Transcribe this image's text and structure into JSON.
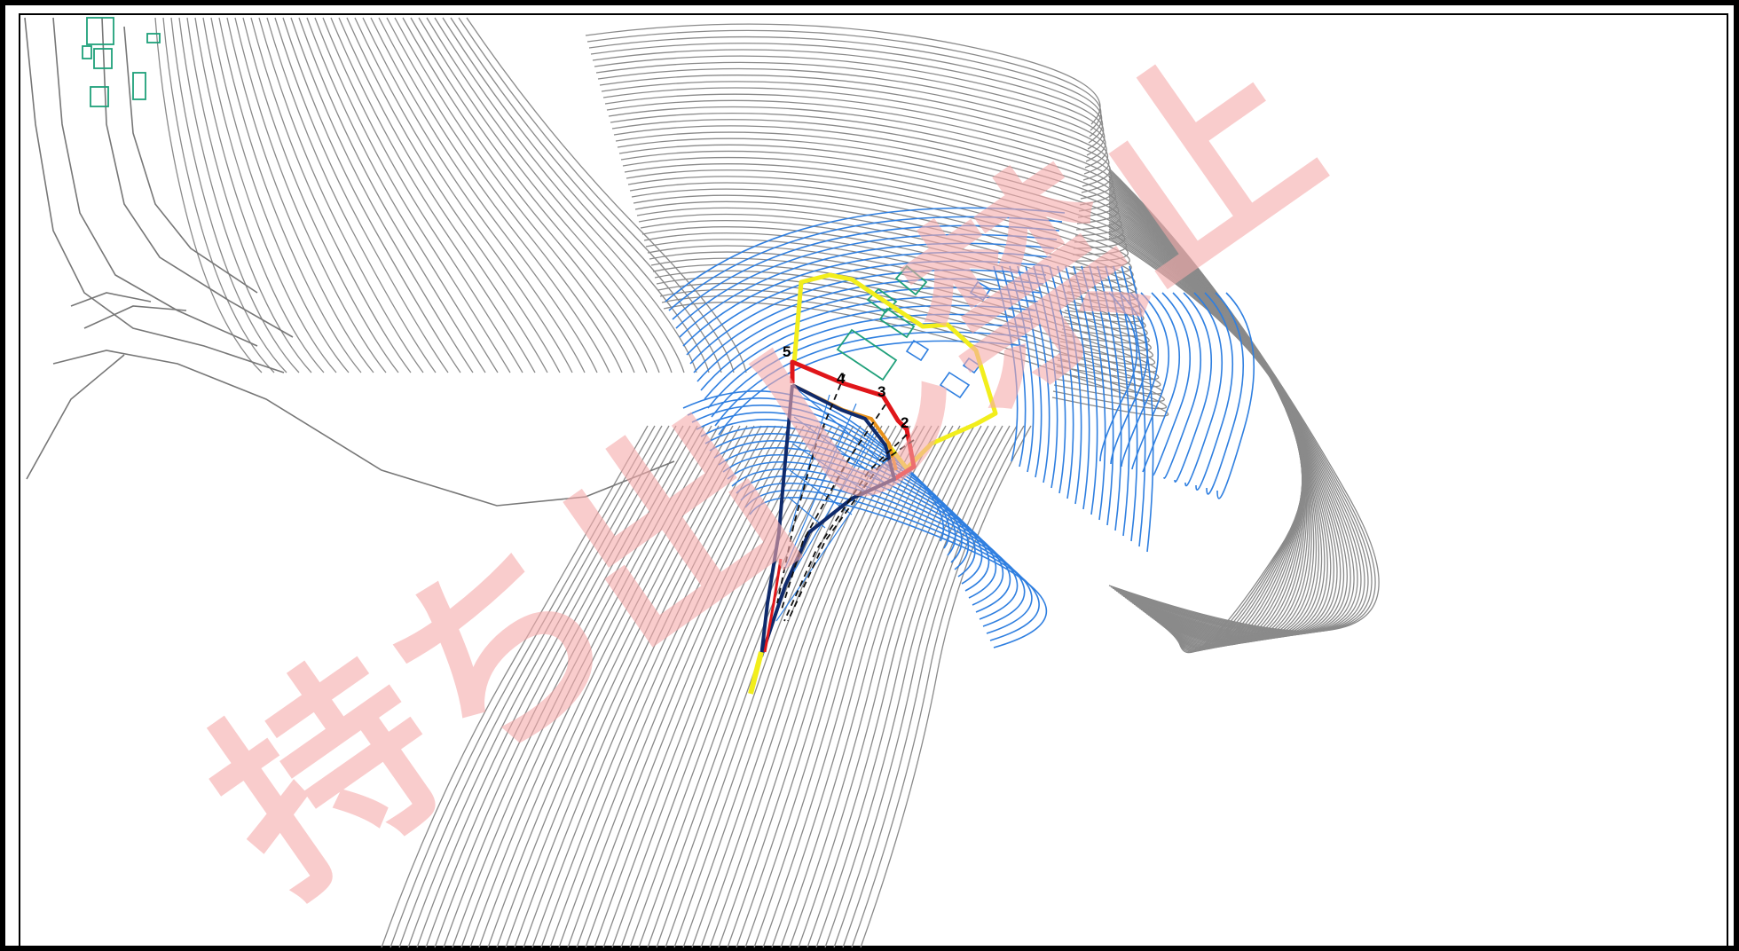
{
  "map": {
    "section_labels": [
      "5",
      "4",
      "3",
      "2"
    ],
    "watermark": "持ち出し禁止",
    "features": {
      "contours": "gray-contour-lines",
      "stream_contours": "blue-contour-lines",
      "buildings": "green-building-outlines",
      "zone_boundary": "yellow-boundary",
      "danger_boundary": "red-boundary",
      "flow_channel": "navy-channel"
    },
    "colors": {
      "frame": "#000000",
      "contour": "#8a8a8a",
      "stream_contour": "#2f7fe0",
      "building": "#1fa07a",
      "yellow_zone": "#f2ee1c",
      "red_zone": "#e0161a",
      "orange_zone": "#e8911a",
      "navy_channel": "#0f2a6b",
      "watermark": "#f5aaaa"
    }
  }
}
